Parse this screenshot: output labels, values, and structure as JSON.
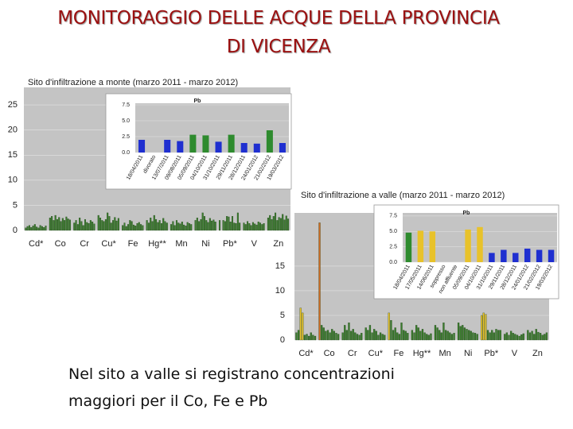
{
  "heading": [
    "MONITORAGGIO DELLE ACQUE DELLA PROVINCIA",
    "DI VICENZA"
  ],
  "text": [
    "Nel sito a valle si registrano concentrazioni",
    "maggiori per il Co, Fe e Pb"
  ],
  "chart_data": [
    {
      "type": "bar",
      "title": "Sito d'infiltrazione a monte (marzo 2011 - marzo 2012)",
      "categories": [
        "Cd*",
        "Co",
        "Cr",
        "Cu*",
        "Fe",
        "Hg**",
        "Mn",
        "Ni",
        "Pb*",
        "V",
        "Zn"
      ],
      "values": [
        [
          0.5,
          0.8,
          1.0,
          0.6,
          0.9,
          1.2,
          0.7,
          0.5,
          1.0,
          0.8,
          0.6,
          0.9
        ],
        [
          2.5,
          2.8,
          2.0,
          3.0,
          2.2,
          2.6,
          1.8,
          2.4,
          2.0,
          2.7,
          2.3,
          2.1
        ],
        [
          1.5,
          2.0,
          1.2,
          2.5,
          1.8,
          1.0,
          2.2,
          1.6,
          1.4,
          2.0,
          1.7,
          1.3
        ],
        [
          3.0,
          2.5,
          2.0,
          1.8,
          2.2,
          3.5,
          2.8,
          1.5,
          2.0,
          2.6,
          1.9,
          2.4
        ],
        [
          1.0,
          1.5,
          0.8,
          1.2,
          2.0,
          1.8,
          1.1,
          0.9,
          1.4,
          1.6,
          1.2,
          1.0
        ],
        [
          2.0,
          1.5,
          2.5,
          1.8,
          3.0,
          2.2,
          1.6,
          2.0,
          1.4,
          2.4,
          1.8,
          1.5
        ],
        [
          1.2,
          1.8,
          1.0,
          2.0,
          1.5,
          1.3,
          1.7,
          1.1,
          0.9,
          1.6,
          1.4,
          1.2
        ],
        [
          2.0,
          2.5,
          1.8,
          2.2,
          3.5,
          2.8,
          2.0,
          1.6,
          2.4,
          1.9,
          2.1,
          1.7
        ],
        [
          2.0,
          0,
          2.0,
          1.8,
          2.8,
          2.7,
          1.7,
          2.8,
          1.5,
          1.4,
          3.5,
          1.5
        ],
        [
          1.5,
          1.2,
          1.8,
          1.4,
          1.0,
          1.6,
          1.3,
          1.1,
          1.7,
          1.5,
          1.2,
          1.4
        ],
        [
          2.5,
          3.0,
          2.2,
          2.8,
          3.5,
          2.0,
          2.6,
          2.4,
          3.2,
          2.1,
          2.9,
          2.3
        ]
      ],
      "color": "#3a7d2c",
      "ylim": [
        0,
        28.5
      ],
      "yticks": [
        0,
        5,
        10,
        15,
        20,
        25
      ],
      "grid": true
    },
    {
      "type": "inset",
      "title": "Pb",
      "categories": [
        "18/04/2011",
        "divorato",
        "13/07/2011",
        "09/08/2011",
        "05/09/2011",
        "04/10/2011",
        "31/10/2011",
        "29/11/2011",
        "28/12/2011",
        "24/01/2012",
        "21/02/2012",
        "19/03/2012"
      ],
      "values": [
        2.0,
        null,
        2.0,
        1.8,
        2.8,
        2.7,
        1.7,
        2.8,
        1.5,
        1.4,
        3.5,
        1.5
      ],
      "colors": [
        "#1f2fd0",
        "#1f2fd0",
        "#1f2fd0",
        "#1f2fd0",
        "#2e8b2e",
        "#2e8b2e",
        "#1f2fd0",
        "#2e8b2e",
        "#1f2fd0",
        "#1f2fd0",
        "#2e8b2e",
        "#1f2fd0"
      ],
      "ylim": [
        0,
        7.75
      ],
      "yticks": [
        {
          "value": 0,
          "label": "0.0"
        },
        {
          "value": 2.5,
          "label": "2.5"
        },
        {
          "value": 5,
          "label": "5.0"
        },
        {
          "value": 7.5,
          "label": "7.5"
        }
      ],
      "grid": true
    },
    {
      "type": "bar",
      "title": "Sito d'infiltrazione a valle (marzo 2011 - marzo 2012)",
      "categories": [
        "Cd*",
        "Co",
        "Cr",
        "Cu*",
        "Fe",
        "Hg**",
        "Mn",
        "Ni",
        "Pb*",
        "V",
        "Zn"
      ],
      "values": [
        [
          1.5,
          2.0,
          6.5,
          5.5,
          1.0,
          1.2,
          0.8,
          1.5,
          1.0,
          0.8
        ],
        [
          23.8,
          3.0,
          2.5,
          1.8,
          2.0,
          1.5,
          2.2,
          1.8,
          1.4,
          1.2
        ],
        [
          1.5,
          3.0,
          2.0,
          3.5,
          1.8,
          2.2,
          1.5,
          1.2,
          1.0,
          1.4
        ],
        [
          2.5,
          2.0,
          3.0,
          1.5,
          2.2,
          1.8,
          1.0,
          1.5,
          1.2,
          1.0
        ],
        [
          5.5,
          4.0,
          2.0,
          2.5,
          1.5,
          1.2,
          3.5,
          2.0,
          1.8,
          1.4
        ],
        [
          2.0,
          1.5,
          3.0,
          2.5,
          1.8,
          2.2,
          1.5,
          1.2,
          1.0,
          1.3
        ],
        [
          3.0,
          2.5,
          2.0,
          1.5,
          3.5,
          2.0,
          1.8,
          1.5,
          1.2,
          1.4
        ],
        [
          3.5,
          2.8,
          3.0,
          2.5,
          2.2,
          2.0,
          1.8,
          1.5,
          1.4,
          1.2
        ],
        [
          5.0,
          5.5,
          5.2,
          2.0,
          1.5,
          2.0,
          1.5,
          2.2,
          2.0,
          2.0
        ],
        [
          1.2,
          1.5,
          1.0,
          1.8,
          1.4,
          1.2,
          1.0,
          0.8,
          1.1,
          1.3
        ],
        [
          2.0,
          1.5,
          1.8,
          1.2,
          2.2,
          1.6,
          1.4,
          1.0,
          1.2,
          1.5
        ]
      ],
      "bar_colors": [
        [
          "#3a7d2c",
          "#3a7d2c",
          "#e8c22a",
          "#e8c22a",
          "#3a7d2c",
          "#3a7d2c",
          "#3a7d2c",
          "#3a7d2c",
          "#3a7d2c",
          "#3a7d2c"
        ],
        [
          "#d2691e",
          "#3a7d2c",
          "#3a7d2c",
          "#3a7d2c",
          "#3a7d2c",
          "#3a7d2c",
          "#3a7d2c",
          "#3a7d2c",
          "#3a7d2c",
          "#3a7d2c"
        ],
        [
          "#3a7d2c",
          "#3a7d2c",
          "#3a7d2c",
          "#3a7d2c",
          "#3a7d2c",
          "#3a7d2c",
          "#3a7d2c",
          "#3a7d2c",
          "#3a7d2c",
          "#3a7d2c"
        ],
        [
          "#3a7d2c",
          "#3a7d2c",
          "#3a7d2c",
          "#3a7d2c",
          "#3a7d2c",
          "#3a7d2c",
          "#3a7d2c",
          "#3a7d2c",
          "#3a7d2c",
          "#3a7d2c"
        ],
        [
          "#e8c22a",
          "#3a7d2c",
          "#3a7d2c",
          "#3a7d2c",
          "#3a7d2c",
          "#3a7d2c",
          "#3a7d2c",
          "#3a7d2c",
          "#3a7d2c",
          "#3a7d2c"
        ],
        [
          "#3a7d2c",
          "#3a7d2c",
          "#3a7d2c",
          "#3a7d2c",
          "#3a7d2c",
          "#3a7d2c",
          "#3a7d2c",
          "#3a7d2c",
          "#3a7d2c",
          "#3a7d2c"
        ],
        [
          "#3a7d2c",
          "#3a7d2c",
          "#3a7d2c",
          "#3a7d2c",
          "#3a7d2c",
          "#3a7d2c",
          "#3a7d2c",
          "#3a7d2c",
          "#3a7d2c",
          "#3a7d2c"
        ],
        [
          "#3a7d2c",
          "#3a7d2c",
          "#3a7d2c",
          "#3a7d2c",
          "#3a7d2c",
          "#3a7d2c",
          "#3a7d2c",
          "#3a7d2c",
          "#3a7d2c",
          "#3a7d2c"
        ],
        [
          "#e8c22a",
          "#e8c22a",
          "#e8c22a",
          "#3a7d2c",
          "#3a7d2c",
          "#3a7d2c",
          "#3a7d2c",
          "#3a7d2c",
          "#3a7d2c",
          "#3a7d2c"
        ],
        [
          "#3a7d2c",
          "#3a7d2c",
          "#3a7d2c",
          "#3a7d2c",
          "#3a7d2c",
          "#3a7d2c",
          "#3a7d2c",
          "#3a7d2c",
          "#3a7d2c",
          "#3a7d2c"
        ],
        [
          "#3a7d2c",
          "#3a7d2c",
          "#3a7d2c",
          "#3a7d2c",
          "#3a7d2c",
          "#3a7d2c",
          "#3a7d2c",
          "#3a7d2c",
          "#3a7d2c",
          "#3a7d2c"
        ]
      ],
      "ylim": [
        0,
        25.8
      ],
      "yticks": [
        0,
        5,
        10,
        15
      ],
      "grid": true
    },
    {
      "type": "inset",
      "title": "Pb",
      "categories": [
        "18/04/2011",
        "17/05/2011",
        "14/06/2011",
        "soppresso",
        "non affluente",
        "05/09/2011",
        "04/10/2011",
        "31/10/2011",
        "29/11/2011",
        "28/12/2011",
        "24/01/2012",
        "21/02/2012",
        "19/03/2012"
      ],
      "values": [
        4.8,
        5.1,
        5.0,
        null,
        null,
        5.3,
        5.7,
        1.5,
        2.0,
        1.5,
        2.2,
        2.0,
        2.0
      ],
      "colors": [
        "#2e8b2e",
        "#e8c22a",
        "#e8c22a",
        "#e8c22a",
        "#e8c22a",
        "#e8c22a",
        "#e8c22a",
        "#1f2fd0",
        "#1f2fd0",
        "#1f2fd0",
        "#1f2fd0",
        "#1f2fd0",
        "#1f2fd0"
      ],
      "ylim": [
        0,
        8
      ],
      "yticks": [
        {
          "value": 0,
          "label": "0.0"
        },
        {
          "value": 2.5,
          "label": "2.5"
        },
        {
          "value": 5,
          "label": "5.0"
        },
        {
          "value": 7.5,
          "label": "7.5"
        }
      ],
      "grid": true
    }
  ]
}
